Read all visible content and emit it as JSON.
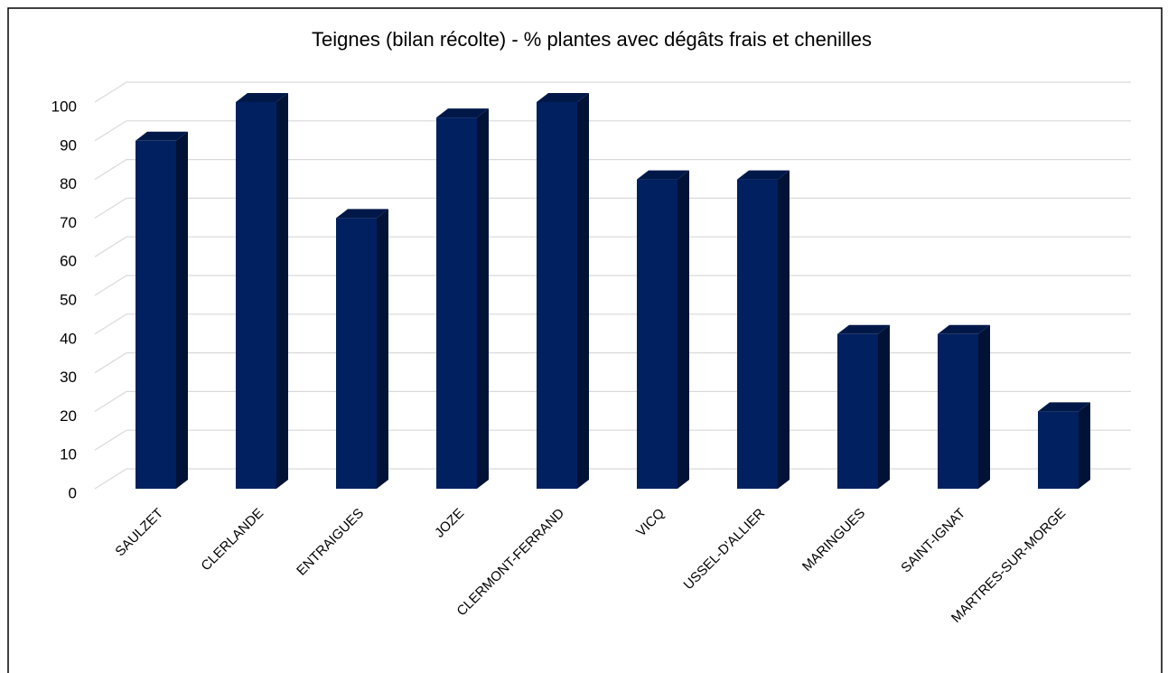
{
  "chart_data": {
    "type": "bar3d",
    "title": "Teignes (bilan récolte) - % plantes avec dégâts frais et chenilles",
    "categories": [
      "SAULZET",
      "CLERLANDE",
      "ENTRAIGUES",
      "JOZE",
      "CLERMONT-FERRAND",
      "VICQ",
      "USSEL-D'ALLIER",
      "MARINGUES",
      "SAINT-IGNAT",
      "MARTRES-SUR-MORGE"
    ],
    "values": [
      90,
      100,
      70,
      96,
      100,
      80,
      80,
      40,
      40,
      20
    ],
    "color": "#002060",
    "ylim": [
      0,
      100
    ],
    "yticks": [
      0,
      10,
      20,
      30,
      40,
      50,
      60,
      70,
      80,
      90,
      100
    ],
    "grid": true
  }
}
